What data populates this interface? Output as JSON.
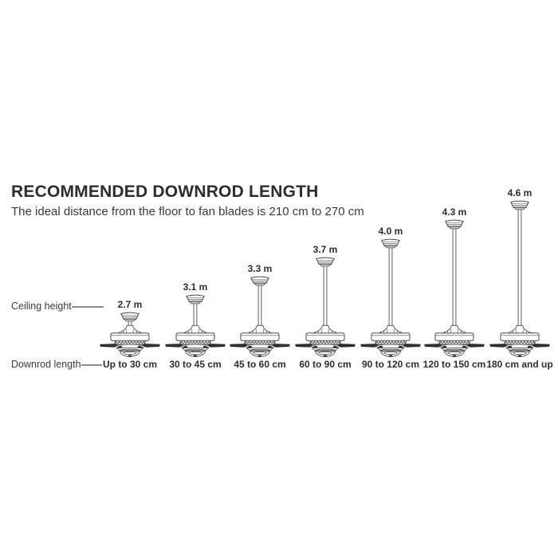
{
  "header": {
    "title": "RECOMMENDED DOWNROD LENGTH",
    "subtitle": "The ideal distance from the floor to fan blades is 210 cm to 270 cm"
  },
  "row_labels": {
    "ceiling_height": "Ceiling height",
    "downrod_length": "Downrod length"
  },
  "fans": [
    {
      "ceiling_height": "2.7 m",
      "downrod_length": "Up to 30 cm"
    },
    {
      "ceiling_height": "3.1 m",
      "downrod_length": "30 to 45 cm"
    },
    {
      "ceiling_height": "3.3 m",
      "downrod_length": "45 to 60 cm"
    },
    {
      "ceiling_height": "3.7 m",
      "downrod_length": "60 to 90 cm"
    },
    {
      "ceiling_height": "4.0 m",
      "downrod_length": "90 to 120 cm"
    },
    {
      "ceiling_height": "4.3 m",
      "downrod_length": "120 to 150 cm"
    },
    {
      "ceiling_height": "4.6 m",
      "downrod_length": "180 cm and up"
    }
  ],
  "colors": {
    "ink": "#2d2d2d",
    "text": "#3a3a3a",
    "outline": "#4c4c4c",
    "blade_fill": "#2f2f2f",
    "stitch": "#3d3d3d",
    "leader_line": "#8c8c8c",
    "background": "#ffffff"
  }
}
